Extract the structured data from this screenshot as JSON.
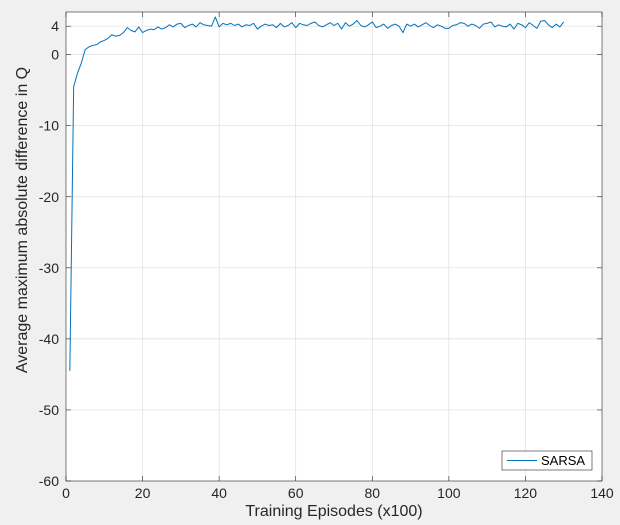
{
  "chart_data": {
    "type": "line",
    "xlabel": "Training Episodes (x100)",
    "ylabel": "Average maximum absolute difference in Q",
    "xlim": [
      0,
      140
    ],
    "ylim": [
      -60,
      6
    ],
    "xticks": [
      "0",
      "20",
      "40",
      "60",
      "80",
      "100",
      "120",
      "140"
    ],
    "xtick_values": [
      0,
      20,
      40,
      60,
      80,
      100,
      120,
      140
    ],
    "yticks": [
      "4",
      "0",
      "-10",
      "-20",
      "-30",
      "-40",
      "-50",
      "-60"
    ],
    "ytick_values": [
      4,
      0,
      -10,
      -20,
      -30,
      -40,
      -50,
      -60
    ],
    "grid": true,
    "legend_position": "bottom-right",
    "series": [
      {
        "name": "SARSA",
        "color": "#0072bd",
        "x": [
          1,
          2,
          3,
          4,
          5,
          6,
          7,
          8,
          9,
          10,
          11,
          12,
          13,
          14,
          15,
          16,
          17,
          18,
          19,
          20,
          21,
          22,
          23,
          24,
          25,
          26,
          27,
          28,
          29,
          30,
          31,
          32,
          33,
          34,
          35,
          36,
          37,
          38,
          39,
          40,
          41,
          42,
          43,
          44,
          45,
          46,
          47,
          48,
          49,
          50,
          51,
          52,
          53,
          54,
          55,
          56,
          57,
          58,
          59,
          60,
          61,
          62,
          63,
          64,
          65,
          66,
          67,
          68,
          69,
          70,
          71,
          72,
          73,
          74,
          75,
          76,
          77,
          78,
          79,
          80,
          81,
          82,
          83,
          84,
          85,
          86,
          87,
          88,
          89,
          90,
          91,
          92,
          93,
          94,
          95,
          96,
          97,
          98,
          99,
          100,
          101,
          102,
          103,
          104,
          105,
          106,
          107,
          108,
          109,
          110,
          111,
          112,
          113,
          114,
          115,
          116,
          117,
          118,
          119,
          120,
          121,
          122,
          123,
          124,
          125,
          126,
          127,
          128,
          129,
          130
        ],
        "y": [
          -44.5,
          -4.5,
          -2.6,
          -1.2,
          0.7,
          1.1,
          1.3,
          1.4,
          1.8,
          2.0,
          2.3,
          2.8,
          2.6,
          2.7,
          3.1,
          3.8,
          3.4,
          3.2,
          3.9,
          3.1,
          3.4,
          3.6,
          3.5,
          3.9,
          3.6,
          3.8,
          4.2,
          3.9,
          4.3,
          4.4,
          3.8,
          4.1,
          4.3,
          3.9,
          4.5,
          4.2,
          4.1,
          4.0,
          5.3,
          3.9,
          4.4,
          4.2,
          4.4,
          4.1,
          4.3,
          3.9,
          4.2,
          4.1,
          4.4,
          3.6,
          4.0,
          4.3,
          4.1,
          4.2,
          3.8,
          4.4,
          3.9,
          4.1,
          4.5,
          3.8,
          4.4,
          4.2,
          4.1,
          4.4,
          4.6,
          4.1,
          3.9,
          4.2,
          4.5,
          4.1,
          4.4,
          3.6,
          4.5,
          4.0,
          4.3,
          4.8,
          4.1,
          3.9,
          4.2,
          4.6,
          3.8,
          4.0,
          4.3,
          3.7,
          4.1,
          4.3,
          4.0,
          3.1,
          4.3,
          4.0,
          4.3,
          3.9,
          4.2,
          4.5,
          4.1,
          3.8,
          4.2,
          4.0,
          3.7,
          3.7,
          4.1,
          4.2,
          4.5,
          4.4,
          4.0,
          4.3,
          4.1,
          3.7,
          4.3,
          4.4,
          4.6,
          3.9,
          4.2,
          4.0,
          3.9,
          4.3,
          3.6,
          4.4,
          4.2,
          3.8,
          4.5,
          4.1,
          3.7,
          4.7,
          4.8,
          4.2,
          3.8,
          4.3,
          3.9,
          4.6
        ]
      }
    ]
  }
}
